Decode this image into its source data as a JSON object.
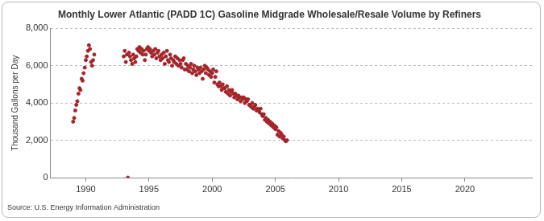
{
  "chart_data": {
    "type": "scatter",
    "title": "Monthly Lower Atlantic (PADD 1C) Gasoline Midgrade Wholesale/Resale Volume by Refiners",
    "y_label": "Thousand Gallons per Day",
    "source": "Source: U.S. Energy Information Administration",
    "color": "#a3252a",
    "marker": "circle",
    "grid": true,
    "xlim": [
      1987.2,
      2025.3
    ],
    "xticks": [
      1990,
      1995,
      2000,
      2005,
      2010,
      2015,
      2020
    ],
    "ylim": [
      0,
      8000
    ],
    "yticks": [
      0,
      {
        "value": 2000,
        "label": "2,000"
      },
      {
        "value": 4000,
        "label": "4,000"
      },
      {
        "value": 6000,
        "label": "6,000"
      },
      {
        "value": 8000,
        "label": "8,000"
      }
    ],
    "x": [
      1989.0,
      1989.08,
      1989.17,
      1989.25,
      1989.33,
      1989.42,
      1989.5,
      1989.58,
      1989.67,
      1989.75,
      1989.83,
      1989.92,
      1990.0,
      1990.08,
      1990.17,
      1990.25,
      1990.33,
      1990.42,
      1990.5,
      1990.58,
      1990.67,
      1993.0,
      1993.08,
      1993.17,
      1993.25,
      1993.33,
      1993.42,
      1993.5,
      1993.58,
      1993.67,
      1993.75,
      1993.83,
      1993.92,
      1994.0,
      1994.08,
      1994.17,
      1994.25,
      1994.33,
      1994.42,
      1994.5,
      1994.58,
      1994.67,
      1994.75,
      1994.83,
      1994.92,
      1995.0,
      1995.08,
      1995.17,
      1995.25,
      1995.33,
      1995.42,
      1995.5,
      1995.58,
      1995.67,
      1995.75,
      1995.83,
      1995.92,
      1996.0,
      1996.08,
      1996.17,
      1996.25,
      1996.33,
      1996.42,
      1996.5,
      1996.58,
      1996.67,
      1996.75,
      1996.83,
      1996.92,
      1997.0,
      1997.08,
      1997.17,
      1997.25,
      1997.33,
      1997.42,
      1997.5,
      1997.58,
      1997.67,
      1997.75,
      1997.83,
      1997.92,
      1998.0,
      1998.08,
      1998.17,
      1998.25,
      1998.33,
      1998.42,
      1998.5,
      1998.58,
      1998.67,
      1998.75,
      1998.83,
      1998.92,
      1999.0,
      1999.08,
      1999.17,
      1999.25,
      1999.33,
      1999.42,
      1999.5,
      1999.58,
      1999.67,
      1999.75,
      1999.83,
      1999.92,
      2000.0,
      2000.08,
      2000.17,
      2000.25,
      2000.33,
      2000.42,
      2000.5,
      2000.58,
      2000.67,
      2000.75,
      2000.83,
      2000.92,
      2001.0,
      2001.08,
      2001.17,
      2001.25,
      2001.33,
      2001.42,
      2001.5,
      2001.58,
      2001.67,
      2001.75,
      2001.83,
      2001.92,
      2002.0,
      2002.08,
      2002.17,
      2002.25,
      2002.33,
      2002.42,
      2002.5,
      2002.58,
      2002.67,
      2002.75,
      2002.83,
      2002.92,
      2003.0,
      2003.08,
      2003.17,
      2003.25,
      2003.33,
      2003.42,
      2003.5,
      2003.58,
      2003.67,
      2003.75,
      2003.83,
      2003.92,
      2004.0,
      2004.08,
      2004.17,
      2004.25,
      2004.33,
      2004.42,
      2004.5,
      2004.58,
      2004.67,
      2004.75,
      2004.83,
      2004.92,
      2005.0,
      2005.08,
      2005.17,
      2005.25,
      2005.33,
      2005.42,
      2005.5,
      2005.58,
      2005.67,
      2005.75,
      2005.83,
      2005.92
    ],
    "values": [
      3000,
      3200,
      3600,
      3900,
      4100,
      4500,
      4800,
      4700,
      5300,
      5200,
      5600,
      5900,
      6300,
      6500,
      6800,
      7100,
      6900,
      6200,
      6000,
      6300,
      6600,
      6500,
      6800,
      6200,
      6600,
      0,
      6700,
      6500,
      6300,
      6100,
      6600,
      6400,
      6200,
      6500,
      6900,
      6800,
      7000,
      6700,
      6900,
      6600,
      6800,
      6300,
      6600,
      6900,
      7000,
      6800,
      6900,
      6700,
      6500,
      6800,
      6600,
      6900,
      6400,
      6700,
      6800,
      6500,
      6300,
      6600,
      6400,
      6700,
      6100,
      6500,
      6800,
      6300,
      6200,
      6600,
      6400,
      6000,
      6300,
      6200,
      6500,
      6100,
      6400,
      6000,
      6300,
      6100,
      5900,
      6300,
      6400,
      5800,
      6100,
      5800,
      6000,
      5700,
      5900,
      6100,
      5600,
      5800,
      6000,
      5700,
      5500,
      5900,
      5800,
      5600,
      5900,
      5700,
      5300,
      5800,
      6000,
      5600,
      5900,
      5800,
      5500,
      5700,
      5400,
      5600,
      5800,
      5100,
      5400,
      5700,
      5000,
      4900,
      5100,
      4900,
      4700,
      5000,
      4800,
      4800,
      4600,
      4900,
      4500,
      4700,
      4400,
      4600,
      4700,
      4500,
      4300,
      4500,
      4400,
      4200,
      4400,
      4300,
      4100,
      4300,
      4200,
      4300,
      4000,
      4200,
      4100,
      4200,
      3900,
      3900,
      3800,
      4000,
      3700,
      3800,
      3900,
      3600,
      3700,
      3600,
      3500,
      3700,
      3400,
      3300,
      3400,
      3100,
      3200,
      3000,
      3100,
      2900,
      3000,
      2800,
      2900,
      2700,
      2800,
      2600,
      2700,
      2300,
      2500,
      2200,
      2400,
      2300,
      2100,
      2200,
      2000,
      1950,
      2000
    ]
  }
}
